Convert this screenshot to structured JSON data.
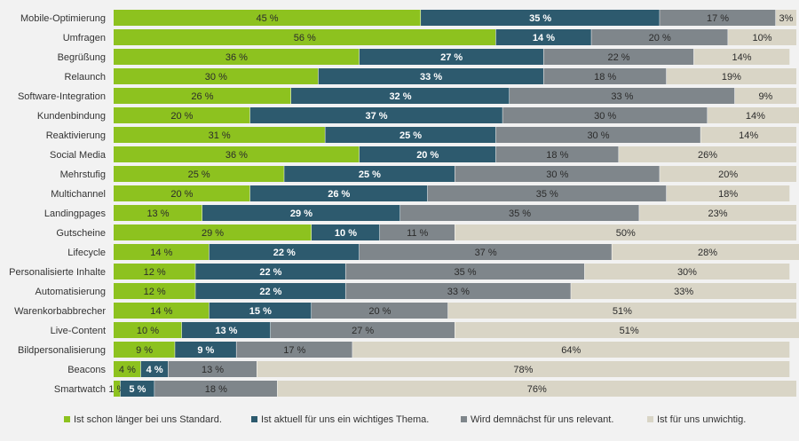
{
  "chart_data": {
    "type": "bar",
    "orientation": "horizontal",
    "stacked": true,
    "percent_suffix": " %",
    "xlim": [
      0,
      100
    ],
    "grid": false,
    "legend_position": "bottom",
    "categories": [
      "Mobile-Optimierung",
      "Umfragen",
      "Begrüßung",
      "Relaunch",
      "Software-Integration",
      "Kundenbindung",
      "Reaktivierung",
      "Social Media",
      "Mehrstufig",
      "Multichannel",
      "Landingpages",
      "Gutscheine",
      "Lifecycle",
      "Personalisierte Inhalte",
      "Automatisierung",
      "Warenkorbabbrecher",
      "Live-Content",
      "Bildpersonalisierung",
      "Beacons",
      "Smartwatch"
    ],
    "series": [
      {
        "name": "Ist schon länger bei uns Standard.",
        "color": "#8dc21f",
        "label_color": "#2b2b2b",
        "values": [
          45,
          56,
          36,
          30,
          26,
          20,
          31,
          36,
          25,
          20,
          13,
          29,
          14,
          12,
          12,
          14,
          10,
          9,
          4,
          1
        ]
      },
      {
        "name": "Ist aktuell für uns ein wichtiges Thema.",
        "color": "#2d5a6e",
        "label_color": "#ffffff",
        "values": [
          35,
          14,
          27,
          33,
          32,
          37,
          25,
          20,
          25,
          26,
          29,
          10,
          22,
          22,
          22,
          15,
          13,
          9,
          4,
          5
        ]
      },
      {
        "name": "Wird demnächst für uns relevant.",
        "color": "#7f868b",
        "label_color": "#2b2b2b",
        "values": [
          17,
          20,
          22,
          18,
          33,
          30,
          30,
          18,
          30,
          35,
          35,
          11,
          37,
          35,
          33,
          20,
          27,
          17,
          13,
          18
        ]
      },
      {
        "name": "Ist für uns unwichtig.",
        "color": "#d9d5c6",
        "label_color": "#2b2b2b",
        "values": [
          3,
          10,
          14,
          19,
          9,
          14,
          14,
          26,
          20,
          18,
          23,
          50,
          28,
          30,
          33,
          51,
          51,
          64,
          78,
          76
        ]
      }
    ]
  }
}
